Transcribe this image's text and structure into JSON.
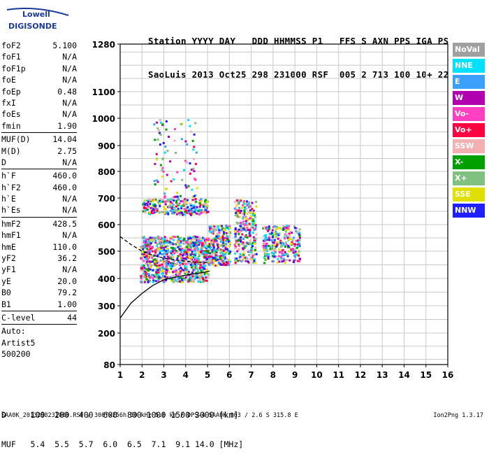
{
  "logo": {
    "line1": "Lowell",
    "line2": "DIGISONDE"
  },
  "header": {
    "line1": "Station YYYY DAY   DDD HHMMSS P1   FFS S AXN PPS IGA PS",
    "line2": "SaoLuis 2013 Oct25 298 231000 RSF  005 2 713 100 10+ 22"
  },
  "params": [
    {
      "group": [
        {
          "name": "foF2",
          "value": "5.100"
        },
        {
          "name": "foF1",
          "value": "N/A"
        },
        {
          "name": "foF1p",
          "value": "N/A"
        },
        {
          "name": "foE",
          "value": "N/A"
        },
        {
          "name": "foEp",
          "value": "0.48"
        },
        {
          "name": "fxI",
          "value": "N/A"
        },
        {
          "name": "foEs",
          "value": "N/A"
        },
        {
          "name": "fmin",
          "value": "1.90"
        }
      ]
    },
    {
      "group": [
        {
          "name": "MUF(D)",
          "value": "14.04"
        },
        {
          "name": "M(D)",
          "value": "2.75"
        },
        {
          "name": "D",
          "value": "N/A"
        }
      ]
    },
    {
      "group": [
        {
          "name": "h`F",
          "value": "460.0"
        },
        {
          "name": "h`F2",
          "value": "460.0"
        },
        {
          "name": "h`E",
          "value": "N/A"
        },
        {
          "name": "h`Es",
          "value": "N/A"
        }
      ]
    },
    {
      "group": [
        {
          "name": "hmF2",
          "value": "428.5"
        },
        {
          "name": "hmF1",
          "value": "N/A"
        },
        {
          "name": "hmE",
          "value": "110.0"
        },
        {
          "name": "yF2",
          "value": "36.2"
        },
        {
          "name": "yF1",
          "value": "N/A"
        },
        {
          "name": "yE",
          "value": "20.0"
        },
        {
          "name": "B0",
          "value": "79.2"
        },
        {
          "name": "B1",
          "value": "1.00"
        }
      ]
    },
    {
      "group": [
        {
          "name": "C-level",
          "value": "44"
        }
      ]
    },
    {
      "group": [
        {
          "name": "Auto:",
          "value": ""
        },
        {
          "name": "Artist5",
          "value": ""
        },
        {
          "name": "500200",
          "value": ""
        }
      ]
    }
  ],
  "legend": [
    {
      "label": "NoVal",
      "color": "#a0a0a0"
    },
    {
      "label": "NNE",
      "color": "#00e0ff"
    },
    {
      "label": "E",
      "color": "#3ca0ff"
    },
    {
      "label": "W",
      "color": "#b000b0"
    },
    {
      "label": "Vo-",
      "color": "#ff40c0"
    },
    {
      "label": "Vo+",
      "color": "#ff0040"
    },
    {
      "label": "SSW",
      "color": "#f4b0b0"
    },
    {
      "label": "X-",
      "color": "#00a000"
    },
    {
      "label": "X+",
      "color": "#80c080"
    },
    {
      "label": "SSE",
      "color": "#e0e000"
    },
    {
      "label": "NNW",
      "color": "#2020ff"
    }
  ],
  "footer": {
    "d_line": "D     100  200  400  600  800 1000 1500 3000 [km]",
    "muf_line": "MUF   5.4  5.5  5.7  6.0  6.5  7.1  9.1 14.0 [MHz]",
    "filename": "SAA0K_2013298231000.RSF / 300fx256h 50 kHz 5.0 km / DPS-4 SAA0K 903 / 2.6 S 315.8 E",
    "version": "Ion2Png 1.3.17"
  },
  "chart_data": {
    "type": "scatter",
    "title": "",
    "xlabel": "",
    "ylabel": "",
    "xlim": [
      1,
      16
    ],
    "ylim": [
      80,
      1280
    ],
    "y_scale": "nonlinear (ionogram virtual height)",
    "x_ticks": [
      1,
      2,
      3,
      4,
      5,
      6,
      7,
      8,
      9,
      10,
      11,
      12,
      13,
      14,
      15,
      16
    ],
    "y_ticks": [
      80,
      200,
      300,
      400,
      500,
      600,
      700,
      800,
      900,
      1000,
      1100,
      1280
    ],
    "grid": true,
    "legend_position": "right",
    "traces": [
      {
        "name": "",
        "style": "solid",
        "points": [
          [
            1.0,
            255
          ],
          [
            1.5,
            310
          ],
          [
            2.0,
            345
          ],
          [
            2.5,
            375
          ],
          [
            3.0,
            395
          ],
          [
            3.5,
            405
          ],
          [
            4.0,
            412
          ],
          [
            4.5,
            418
          ],
          [
            5.0,
            425
          ],
          [
            5.1,
            428
          ]
        ]
      },
      {
        "name": "",
        "style": "dashed",
        "points": [
          [
            1.0,
            555
          ],
          [
            1.5,
            525
          ],
          [
            2.0,
            500
          ],
          [
            2.5,
            485
          ],
          [
            3.0,
            475
          ],
          [
            3.5,
            468
          ],
          [
            4.0,
            463
          ],
          [
            4.5,
            460
          ],
          [
            5.0,
            458
          ]
        ]
      }
    ],
    "clusters": [
      {
        "f_range": [
          1.9,
          5.0
        ],
        "h_range": [
          390,
          560
        ],
        "density": "high"
      },
      {
        "f_range": [
          2.0,
          5.0
        ],
        "h_range": [
          640,
          700
        ],
        "density": "medium"
      },
      {
        "f_range": [
          5.0,
          6.0
        ],
        "h_range": [
          450,
          600
        ],
        "density": "medium"
      },
      {
        "f_range": [
          6.2,
          7.2
        ],
        "h_range": [
          460,
          700
        ],
        "density": "medium"
      },
      {
        "f_range": [
          7.5,
          9.2
        ],
        "h_range": [
          460,
          600
        ],
        "density": "medium"
      },
      {
        "f_range": [
          2.5,
          4.5
        ],
        "h_range": [
          700,
          1000
        ],
        "density": "low"
      }
    ]
  }
}
